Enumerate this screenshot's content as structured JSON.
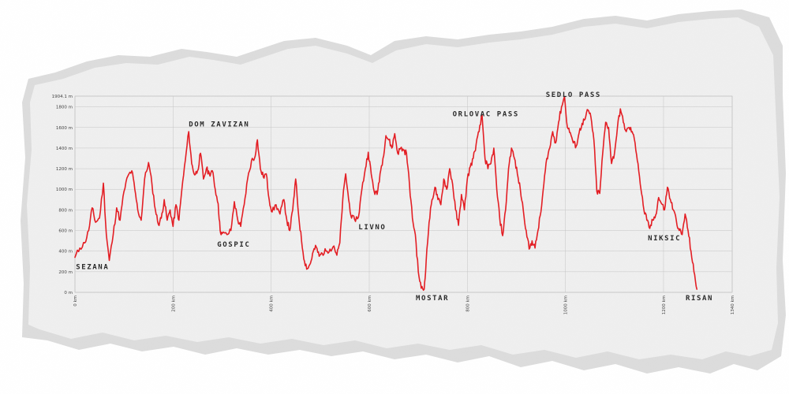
{
  "chart_data": {
    "type": "line",
    "title": "",
    "xlabel": "",
    "ylabel": "",
    "xlim": [
      0,
      1340
    ],
    "ylim": [
      0,
      1904.1
    ],
    "grid": true,
    "x_ticks": [
      {
        "value": 0,
        "label": "0 km"
      },
      {
        "value": 200,
        "label": "200 km"
      },
      {
        "value": 400,
        "label": "400 km"
      },
      {
        "value": 600,
        "label": "600 km"
      },
      {
        "value": 800,
        "label": "800 km"
      },
      {
        "value": 1000,
        "label": "1000 km"
      },
      {
        "value": 1200,
        "label": "1200 km"
      },
      {
        "value": 1340,
        "label": "1340 km"
      }
    ],
    "y_ticks": [
      {
        "value": 0,
        "label": "0 m"
      },
      {
        "value": 200,
        "label": "200 m"
      },
      {
        "value": 400,
        "label": "400 m"
      },
      {
        "value": 600,
        "label": "600 m"
      },
      {
        "value": 800,
        "label": "800 m"
      },
      {
        "value": 1000,
        "label": "1000 m"
      },
      {
        "value": 1200,
        "label": "1200 m"
      },
      {
        "value": 1400,
        "label": "1400 m"
      },
      {
        "value": 1600,
        "label": "1600 m"
      },
      {
        "value": 1800,
        "label": "1800 m"
      },
      {
        "value": 1904.1,
        "label": "1904.1 m"
      }
    ],
    "series": [
      {
        "color": "#e31e24",
        "points": [
          [
            0,
            340
          ],
          [
            10,
            430
          ],
          [
            20,
            480
          ],
          [
            28,
            600
          ],
          [
            35,
            820
          ],
          [
            42,
            680
          ],
          [
            50,
            720
          ],
          [
            58,
            1060
          ],
          [
            64,
            560
          ],
          [
            70,
            310
          ],
          [
            78,
            560
          ],
          [
            85,
            820
          ],
          [
            92,
            700
          ],
          [
            100,
            980
          ],
          [
            108,
            1130
          ],
          [
            116,
            1180
          ],
          [
            122,
            1000
          ],
          [
            128,
            800
          ],
          [
            135,
            700
          ],
          [
            142,
            1100
          ],
          [
            150,
            1260
          ],
          [
            157,
            1050
          ],
          [
            164,
            800
          ],
          [
            170,
            660
          ],
          [
            176,
            720
          ],
          [
            182,
            900
          ],
          [
            188,
            700
          ],
          [
            194,
            800
          ],
          [
            200,
            640
          ],
          [
            206,
            850
          ],
          [
            212,
            700
          ],
          [
            218,
            1000
          ],
          [
            225,
            1280
          ],
          [
            232,
            1560
          ],
          [
            238,
            1250
          ],
          [
            244,
            1140
          ],
          [
            250,
            1180
          ],
          [
            256,
            1350
          ],
          [
            262,
            1100
          ],
          [
            268,
            1200
          ],
          [
            274,
            1150
          ],
          [
            280,
            1180
          ],
          [
            286,
            1000
          ],
          [
            292,
            860
          ],
          [
            296,
            600
          ],
          [
            300,
            570
          ],
          [
            310,
            560
          ],
          [
            318,
            600
          ],
          [
            325,
            880
          ],
          [
            332,
            700
          ],
          [
            338,
            640
          ],
          [
            345,
            850
          ],
          [
            352,
            1100
          ],
          [
            360,
            1280
          ],
          [
            366,
            1300
          ],
          [
            372,
            1480
          ],
          [
            378,
            1200
          ],
          [
            384,
            1120
          ],
          [
            390,
            1150
          ],
          [
            396,
            900
          ],
          [
            402,
            780
          ],
          [
            410,
            850
          ],
          [
            418,
            760
          ],
          [
            426,
            900
          ],
          [
            432,
            700
          ],
          [
            438,
            600
          ],
          [
            444,
            800
          ],
          [
            450,
            1100
          ],
          [
            456,
            750
          ],
          [
            462,
            500
          ],
          [
            468,
            300
          ],
          [
            474,
            230
          ],
          [
            480,
            280
          ],
          [
            486,
            400
          ],
          [
            492,
            440
          ],
          [
            498,
            350
          ],
          [
            504,
            380
          ],
          [
            512,
            400
          ],
          [
            520,
            420
          ],
          [
            528,
            450
          ],
          [
            534,
            360
          ],
          [
            540,
            480
          ],
          [
            546,
            900
          ],
          [
            552,
            1150
          ],
          [
            558,
            900
          ],
          [
            564,
            720
          ],
          [
            570,
            710
          ],
          [
            578,
            730
          ],
          [
            585,
            1000
          ],
          [
            592,
            1200
          ],
          [
            598,
            1360
          ],
          [
            604,
            1150
          ],
          [
            610,
            980
          ],
          [
            616,
            950
          ],
          [
            622,
            1150
          ],
          [
            628,
            1300
          ],
          [
            634,
            1520
          ],
          [
            640,
            1480
          ],
          [
            646,
            1400
          ],
          [
            652,
            1540
          ],
          [
            658,
            1350
          ],
          [
            664,
            1400
          ],
          [
            670,
            1380
          ],
          [
            676,
            1350
          ],
          [
            682,
            1050
          ],
          [
            688,
            720
          ],
          [
            694,
            560
          ],
          [
            700,
            200
          ],
          [
            706,
            40
          ],
          [
            712,
            30
          ],
          [
            716,
            300
          ],
          [
            722,
            680
          ],
          [
            728,
            900
          ],
          [
            734,
            1020
          ],
          [
            740,
            900
          ],
          [
            746,
            850
          ],
          [
            752,
            1100
          ],
          [
            758,
            1000
          ],
          [
            764,
            1200
          ],
          [
            770,
            1050
          ],
          [
            776,
            800
          ],
          [
            782,
            650
          ],
          [
            788,
            950
          ],
          [
            794,
            800
          ],
          [
            800,
            1100
          ],
          [
            806,
            1220
          ],
          [
            812,
            1300
          ],
          [
            818,
            1440
          ],
          [
            824,
            1560
          ],
          [
            830,
            1720
          ],
          [
            836,
            1300
          ],
          [
            842,
            1200
          ],
          [
            848,
            1250
          ],
          [
            854,
            1400
          ],
          [
            860,
            1000
          ],
          [
            866,
            720
          ],
          [
            872,
            550
          ],
          [
            878,
            800
          ],
          [
            884,
            1200
          ],
          [
            890,
            1400
          ],
          [
            896,
            1300
          ],
          [
            902,
            1150
          ],
          [
            908,
            1000
          ],
          [
            914,
            800
          ],
          [
            920,
            600
          ],
          [
            926,
            420
          ],
          [
            932,
            500
          ],
          [
            938,
            430
          ],
          [
            944,
            600
          ],
          [
            950,
            780
          ],
          [
            956,
            1050
          ],
          [
            962,
            1300
          ],
          [
            968,
            1400
          ],
          [
            974,
            1560
          ],
          [
            980,
            1450
          ],
          [
            986,
            1650
          ],
          [
            992,
            1800
          ],
          [
            998,
            1900
          ],
          [
            1004,
            1600
          ],
          [
            1010,
            1550
          ],
          [
            1016,
            1450
          ],
          [
            1022,
            1420
          ],
          [
            1028,
            1550
          ],
          [
            1034,
            1640
          ],
          [
            1040,
            1680
          ],
          [
            1046,
            1770
          ],
          [
            1052,
            1700
          ],
          [
            1058,
            1480
          ],
          [
            1064,
            980
          ],
          [
            1070,
            960
          ],
          [
            1076,
            1350
          ],
          [
            1082,
            1650
          ],
          [
            1088,
            1600
          ],
          [
            1094,
            1250
          ],
          [
            1100,
            1350
          ],
          [
            1106,
            1600
          ],
          [
            1112,
            1780
          ],
          [
            1118,
            1650
          ],
          [
            1124,
            1560
          ],
          [
            1130,
            1600
          ],
          [
            1136,
            1560
          ],
          [
            1142,
            1450
          ],
          [
            1148,
            1250
          ],
          [
            1154,
            1000
          ],
          [
            1160,
            800
          ],
          [
            1166,
            700
          ],
          [
            1172,
            620
          ],
          [
            1178,
            700
          ],
          [
            1184,
            750
          ],
          [
            1190,
            920
          ],
          [
            1196,
            860
          ],
          [
            1202,
            800
          ],
          [
            1208,
            1020
          ],
          [
            1214,
            900
          ],
          [
            1220,
            800
          ],
          [
            1226,
            700
          ],
          [
            1232,
            600
          ],
          [
            1238,
            560
          ],
          [
            1244,
            760
          ],
          [
            1250,
            600
          ],
          [
            1256,
            400
          ],
          [
            1262,
            200
          ],
          [
            1268,
            30
          ]
        ]
      }
    ],
    "annotations": [
      {
        "text": "SEZANA",
        "x": 2,
        "y": 225
      },
      {
        "text": "DOM ZAVIZAN",
        "x": 232,
        "y": 1610
      },
      {
        "text": "GOSPIC",
        "x": 290,
        "y": 445
      },
      {
        "text": "LIVNO",
        "x": 578,
        "y": 610
      },
      {
        "text": "MOSTAR",
        "x": 695,
        "y": -75
      },
      {
        "text": "ORLOVAC PASS",
        "x": 770,
        "y": 1710
      },
      {
        "text": "SEDLO PASS",
        "x": 960,
        "y": 1895
      },
      {
        "text": "NIKSIC",
        "x": 1168,
        "y": 505
      },
      {
        "text": "RISAN",
        "x": 1245,
        "y": -75
      }
    ]
  }
}
